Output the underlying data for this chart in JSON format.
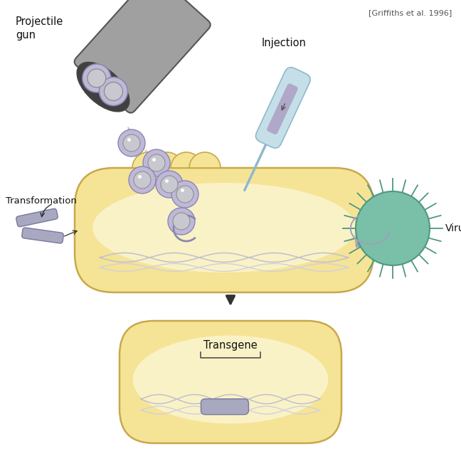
{
  "citation": "[Griffiths et al. 1996]",
  "bg_color": "#ffffff",
  "cell_color": "#f5e496",
  "cell_outline": "#c8a84b",
  "cell_inner": "#fdf8dc",
  "virus_color": "#7abfa8",
  "virus_outline": "#4d9980",
  "needle_color": "#c5dfe8",
  "needle_outline": "#90b8cc",
  "needle_stripe": "#b0a8c8",
  "gun_color_light": "#a0a0a0",
  "gun_color_dark": "#606060",
  "gun_inner": "#404040",
  "ball_fill": "#c8c8d0",
  "ball_outline": "#909090",
  "ring_fill": "#c0b8d8",
  "ring_outline": "#8888b0",
  "dna_color": "#c0c0cc",
  "dna_color2": "#d0d0dc",
  "phage_color": "#a0a0b8",
  "trans_dna_fill": "#a8a8c0",
  "trans_dna_outline": "#7878a0",
  "arrow_color": "#333333",
  "label_color": "#111111",
  "transgene_label": "Transgene",
  "projectile_label": "Projectile\ngun",
  "injection_label": "Injection",
  "transformation_label": "Transformation",
  "virus_label": "Virus"
}
